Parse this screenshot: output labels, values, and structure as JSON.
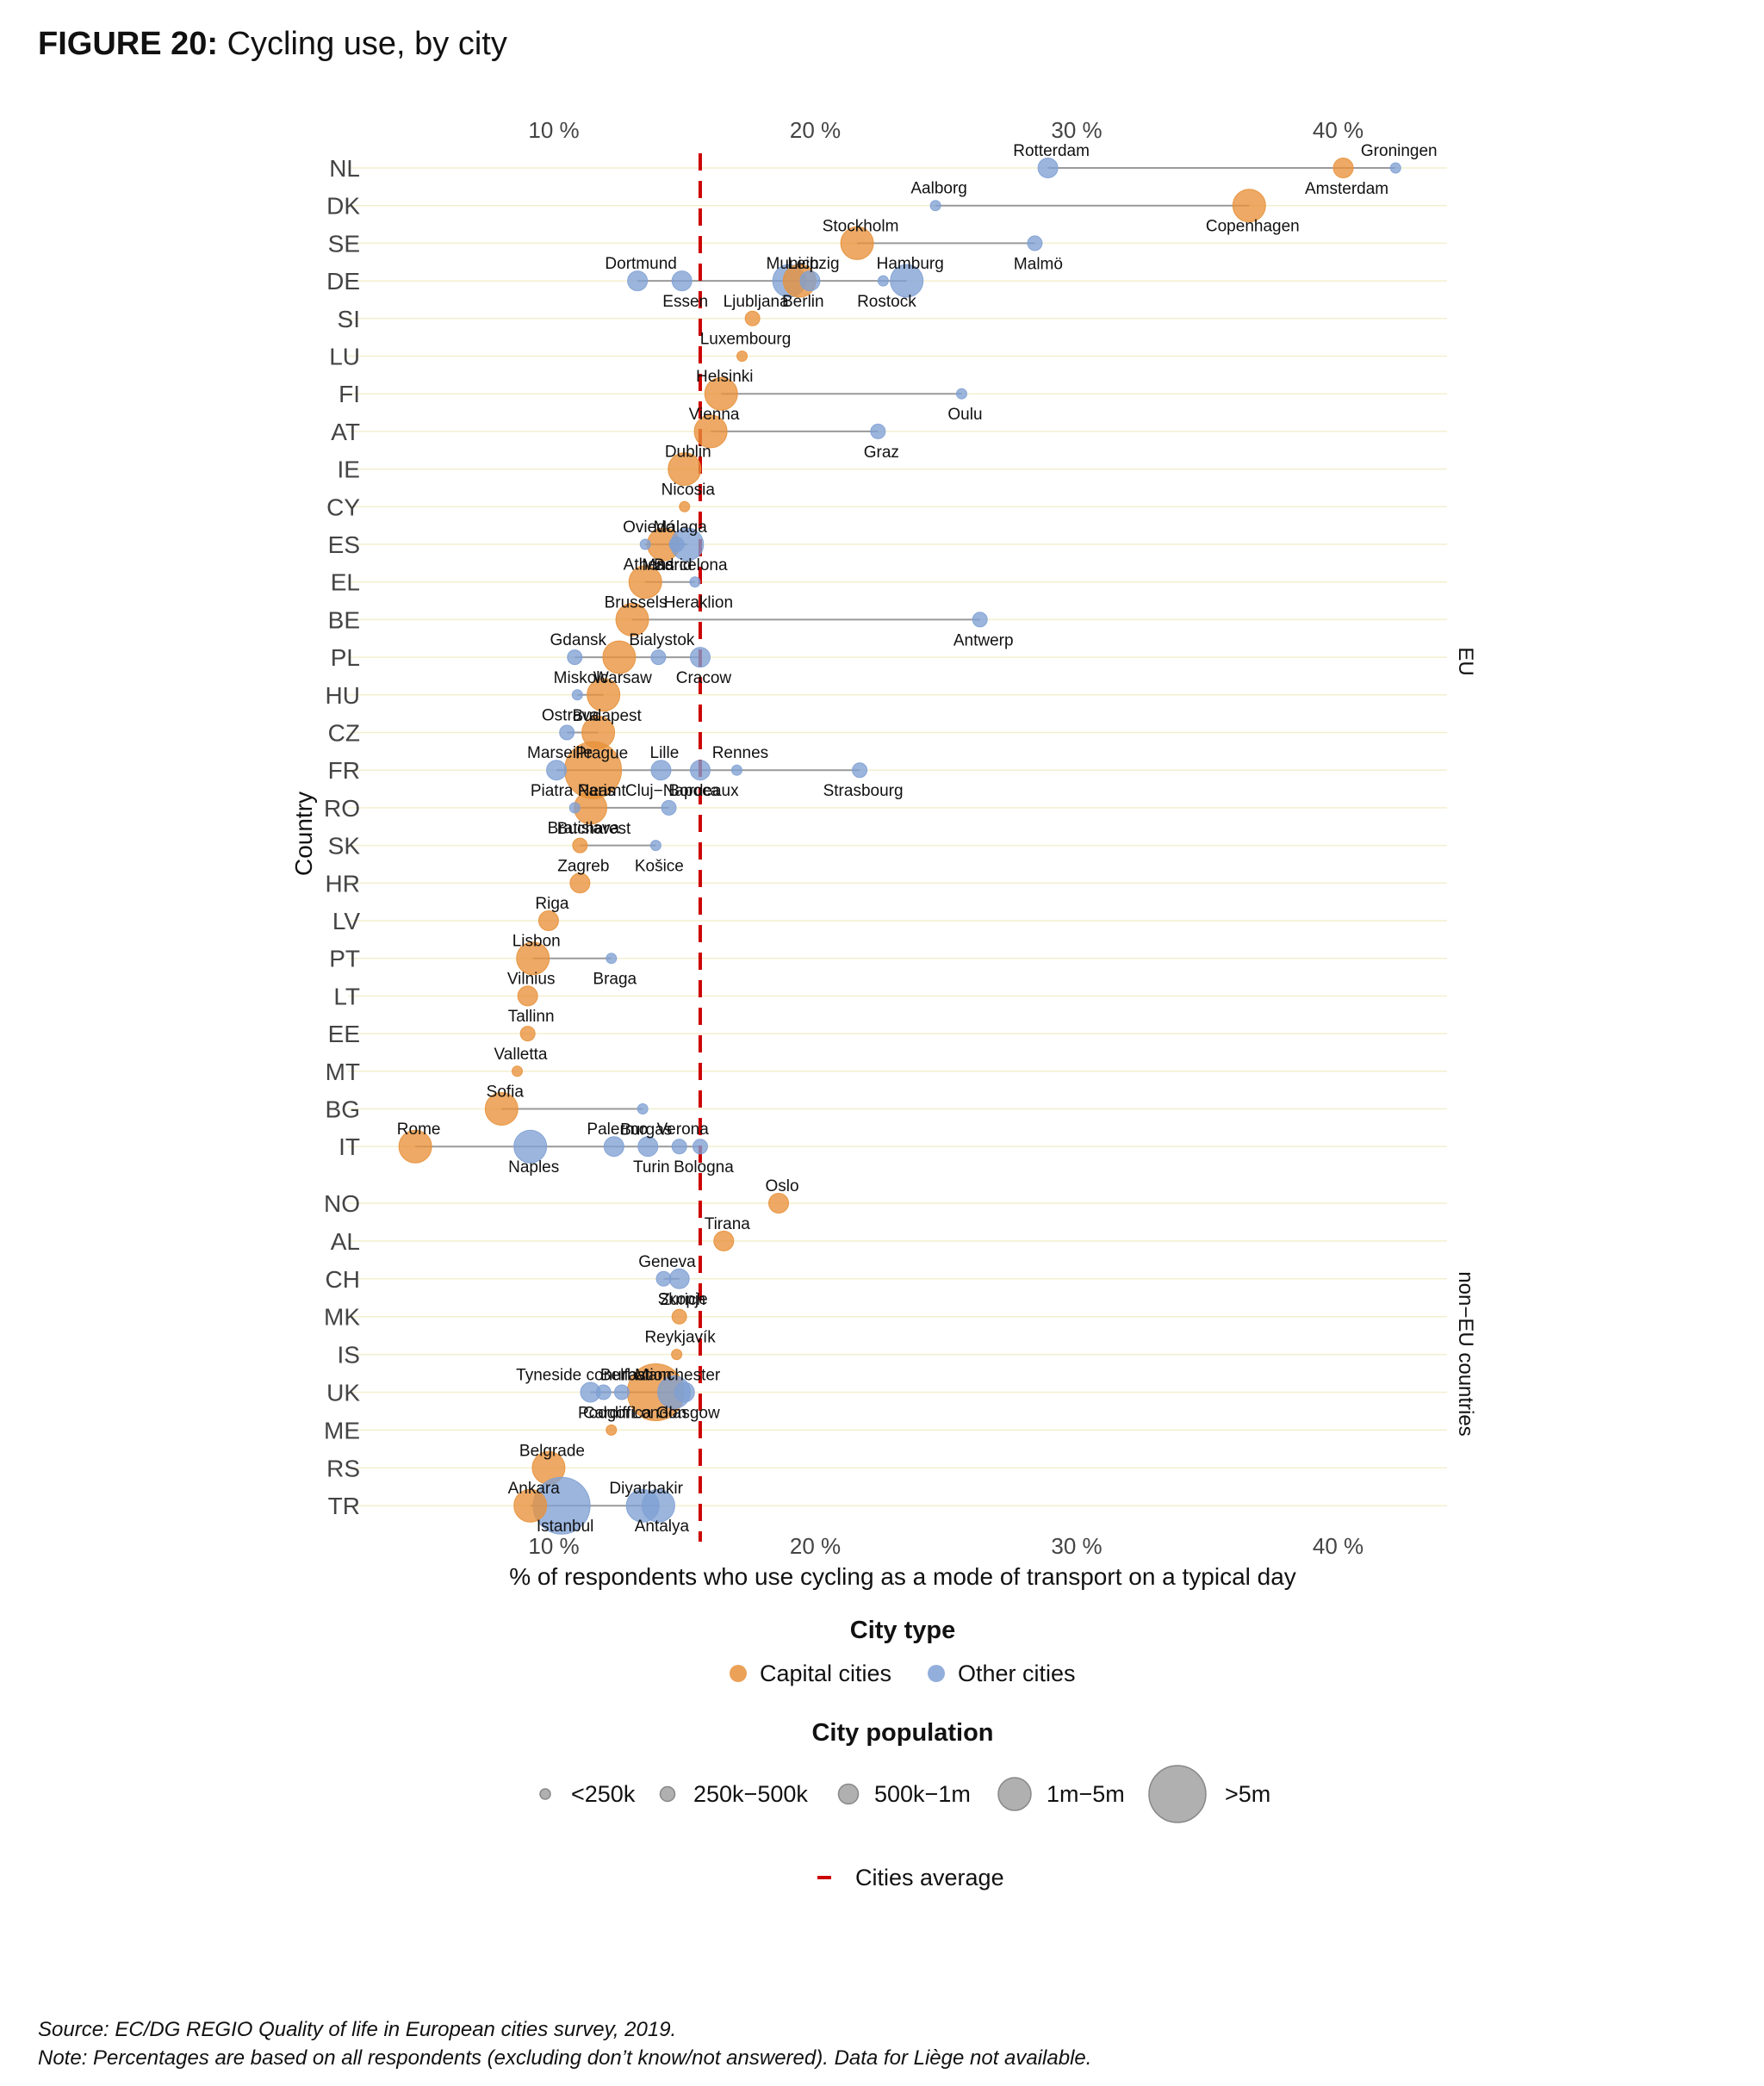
{
  "figure": {
    "label": "FIGURE 20:",
    "title": "Cycling use, by city"
  },
  "footnotes": {
    "source": "Source: EC/DG REGIO Quality of life in European cities survey, 2019.",
    "note": "Note: Percentages are based on all respondents (excluding don’t know/not answered). Data for Liège not available."
  },
  "chart_data": {
    "type": "scatter",
    "xlabel": "% of respondents who use cycling as a mode of transport on a typical day",
    "ylabel": "Country",
    "xlim": [
      3,
      44
    ],
    "xticks": [
      10,
      20,
      30,
      40
    ],
    "xtick_labels": [
      "10 %",
      "20 %",
      "30 %",
      "40 %"
    ],
    "average": 15.6,
    "average_label": "Cities average",
    "average_color": "#cc0000",
    "colors": {
      "capital": "#e8913a",
      "other": "#7fa0d4"
    },
    "groups": [
      {
        "label": "EU",
        "countries": [
          "NL",
          "DK",
          "SE",
          "DE",
          "SI",
          "LU",
          "FI",
          "AT",
          "IE",
          "CY",
          "ES",
          "EL",
          "BE",
          "PL",
          "HU",
          "CZ",
          "FR",
          "RO",
          "SK",
          "HR",
          "LV",
          "PT",
          "LT",
          "EE",
          "MT",
          "BG",
          "IT"
        ]
      },
      {
        "label": "non−EU countries",
        "countries": [
          "NO",
          "AL",
          "CH",
          "MK",
          "IS",
          "UK",
          "ME",
          "RS",
          "TR"
        ]
      }
    ],
    "legend_type": {
      "title": "City type",
      "items": [
        {
          "label": "Capital cities",
          "type": "capital"
        },
        {
          "label": "Other cities",
          "type": "other"
        }
      ]
    },
    "legend_size": {
      "title": "City population",
      "items": [
        {
          "label": "<250k",
          "size": 1
        },
        {
          "label": "250k−500k",
          "size": 2
        },
        {
          "label": "500k−1m",
          "size": 3
        },
        {
          "label": "1m−5m",
          "size": 4
        },
        {
          "label": ">5m",
          "size": 5
        }
      ]
    },
    "countries": [
      {
        "code": "NL",
        "cities": [
          {
            "name": "Rotterdam",
            "value": 28.9,
            "type": "other",
            "size": 3
          },
          {
            "name": "Amsterdam",
            "value": 40.2,
            "type": "capital",
            "size": 3
          },
          {
            "name": "Groningen",
            "value": 42.2,
            "type": "other",
            "size": 1
          }
        ]
      },
      {
        "code": "DK",
        "cities": [
          {
            "name": "Aalborg",
            "value": 24.6,
            "type": "other",
            "size": 1
          },
          {
            "name": "Copenhagen",
            "value": 36.6,
            "type": "capital",
            "size": 4
          }
        ]
      },
      {
        "code": "SE",
        "cities": [
          {
            "name": "Stockholm",
            "value": 21.6,
            "type": "capital",
            "size": 4
          },
          {
            "name": "Malmö",
            "value": 28.4,
            "type": "other",
            "size": 2
          }
        ]
      },
      {
        "code": "DE",
        "cities": [
          {
            "name": "Dortmund",
            "value": 13.2,
            "type": "other",
            "size": 3
          },
          {
            "name": "Essen",
            "value": 14.9,
            "type": "other",
            "size": 3
          },
          {
            "name": "Munich",
            "value": 19.0,
            "type": "other",
            "size": 4
          },
          {
            "name": "Berlin",
            "value": 19.4,
            "type": "capital",
            "size": 4
          },
          {
            "name": "Leipzig",
            "value": 19.8,
            "type": "other",
            "size": 3
          },
          {
            "name": "Rostock",
            "value": 22.6,
            "type": "other",
            "size": 1
          },
          {
            "name": "Hamburg",
            "value": 23.5,
            "type": "other",
            "size": 4
          }
        ]
      },
      {
        "code": "SI",
        "cities": [
          {
            "name": "Ljubljana",
            "value": 17.6,
            "type": "capital",
            "size": 2
          }
        ]
      },
      {
        "code": "LU",
        "cities": [
          {
            "name": "Luxembourg",
            "value": 17.2,
            "type": "capital",
            "size": 1
          }
        ]
      },
      {
        "code": "FI",
        "cities": [
          {
            "name": "Helsinki",
            "value": 16.4,
            "type": "capital",
            "size": 4
          },
          {
            "name": "Oulu",
            "value": 25.6,
            "type": "other",
            "size": 1
          }
        ]
      },
      {
        "code": "AT",
        "cities": [
          {
            "name": "Vienna",
            "value": 16.0,
            "type": "capital",
            "size": 4
          },
          {
            "name": "Graz",
            "value": 22.4,
            "type": "other",
            "size": 2
          }
        ]
      },
      {
        "code": "IE",
        "cities": [
          {
            "name": "Dublin",
            "value": 15.0,
            "type": "capital",
            "size": 4
          }
        ]
      },
      {
        "code": "CY",
        "cities": [
          {
            "name": "Nicosia",
            "value": 15.0,
            "type": "capital",
            "size": 1
          }
        ]
      },
      {
        "code": "ES",
        "cities": [
          {
            "name": "Oviedo",
            "value": 13.5,
            "type": "other",
            "size": 1
          },
          {
            "name": "Madrid",
            "value": 14.2,
            "type": "capital",
            "size": 4
          },
          {
            "name": "Málaga",
            "value": 14.7,
            "type": "other",
            "size": 2
          },
          {
            "name": "Barcelona",
            "value": 15.1,
            "type": "other",
            "size": 4
          }
        ]
      },
      {
        "code": "EL",
        "cities": [
          {
            "name": "Athens",
            "value": 13.5,
            "type": "capital",
            "size": 4
          },
          {
            "name": "Heraklion",
            "value": 15.4,
            "type": "other",
            "size": 1
          }
        ]
      },
      {
        "code": "BE",
        "cities": [
          {
            "name": "Brussels",
            "value": 13.0,
            "type": "capital",
            "size": 4
          },
          {
            "name": "Antwerp",
            "value": 26.3,
            "type": "other",
            "size": 2
          }
        ]
      },
      {
        "code": "PL",
        "cities": [
          {
            "name": "Gdansk",
            "value": 10.8,
            "type": "other",
            "size": 2
          },
          {
            "name": "Warsaw",
            "value": 12.5,
            "type": "capital",
            "size": 4
          },
          {
            "name": "Bialystok",
            "value": 14.0,
            "type": "other",
            "size": 2
          },
          {
            "name": "Cracow",
            "value": 15.6,
            "type": "other",
            "size": 3
          }
        ]
      },
      {
        "code": "HU",
        "cities": [
          {
            "name": "Miskolc",
            "value": 10.9,
            "type": "other",
            "size": 1
          },
          {
            "name": "Budapest",
            "value": 11.9,
            "type": "capital",
            "size": 4
          }
        ]
      },
      {
        "code": "CZ",
        "cities": [
          {
            "name": "Ostrava",
            "value": 10.5,
            "type": "other",
            "size": 2
          },
          {
            "name": "Prague",
            "value": 11.7,
            "type": "capital",
            "size": 4
          }
        ]
      },
      {
        "code": "FR",
        "cities": [
          {
            "name": "Marseille",
            "value": 10.1,
            "type": "other",
            "size": 3
          },
          {
            "name": "Paris",
            "value": 11.5,
            "type": "capital",
            "size": 5
          },
          {
            "name": "Lille",
            "value": 14.1,
            "type": "other",
            "size": 3
          },
          {
            "name": "Bordeaux",
            "value": 15.6,
            "type": "other",
            "size": 3
          },
          {
            "name": "Rennes",
            "value": 17.0,
            "type": "other",
            "size": 1
          },
          {
            "name": "Strasbourg",
            "value": 21.7,
            "type": "other",
            "size": 2
          }
        ]
      },
      {
        "code": "RO",
        "cities": [
          {
            "name": "Piatra Neamt",
            "value": 10.8,
            "type": "other",
            "size": 1
          },
          {
            "name": "Bucharest",
            "value": 11.4,
            "type": "capital",
            "size": 4
          },
          {
            "name": "Cluj−Napoca",
            "value": 14.4,
            "type": "other",
            "size": 2
          }
        ]
      },
      {
        "code": "SK",
        "cities": [
          {
            "name": "Bratislava",
            "value": 11.0,
            "type": "capital",
            "size": 2
          },
          {
            "name": "Košice",
            "value": 13.9,
            "type": "other",
            "size": 1
          }
        ]
      },
      {
        "code": "HR",
        "cities": [
          {
            "name": "Zagreb",
            "value": 11.0,
            "type": "capital",
            "size": 3
          }
        ]
      },
      {
        "code": "LV",
        "cities": [
          {
            "name": "Riga",
            "value": 9.8,
            "type": "capital",
            "size": 3
          }
        ]
      },
      {
        "code": "PT",
        "cities": [
          {
            "name": "Lisbon",
            "value": 9.2,
            "type": "capital",
            "size": 4
          },
          {
            "name": "Braga",
            "value": 12.2,
            "type": "other",
            "size": 1
          }
        ]
      },
      {
        "code": "LT",
        "cities": [
          {
            "name": "Vilnius",
            "value": 9.0,
            "type": "capital",
            "size": 3
          }
        ]
      },
      {
        "code": "EE",
        "cities": [
          {
            "name": "Tallinn",
            "value": 9.0,
            "type": "capital",
            "size": 2
          }
        ]
      },
      {
        "code": "MT",
        "cities": [
          {
            "name": "Valletta",
            "value": 8.6,
            "type": "capital",
            "size": 1
          }
        ]
      },
      {
        "code": "BG",
        "cities": [
          {
            "name": "Sofia",
            "value": 8.0,
            "type": "capital",
            "size": 4
          },
          {
            "name": "Burgas",
            "value": 13.4,
            "type": "other",
            "size": 1
          }
        ]
      },
      {
        "code": "IT",
        "cities": [
          {
            "name": "Rome",
            "value": 4.7,
            "type": "capital",
            "size": 4
          },
          {
            "name": "Naples",
            "value": 9.1,
            "type": "other",
            "size": 4
          },
          {
            "name": "Palermo",
            "value": 12.3,
            "type": "other",
            "size": 3
          },
          {
            "name": "Turin",
            "value": 13.6,
            "type": "other",
            "size": 3
          },
          {
            "name": "Verona",
            "value": 14.8,
            "type": "other",
            "size": 2
          },
          {
            "name": "Bologna",
            "value": 15.6,
            "type": "other",
            "size": 2
          }
        ]
      },
      {
        "code": "NO",
        "cities": [
          {
            "name": "Oslo",
            "value": 18.6,
            "type": "capital",
            "size": 3
          }
        ]
      },
      {
        "code": "AL",
        "cities": [
          {
            "name": "Tirana",
            "value": 16.5,
            "type": "capital",
            "size": 3
          }
        ]
      },
      {
        "code": "CH",
        "cities": [
          {
            "name": "Geneva",
            "value": 14.2,
            "type": "other",
            "size": 2
          },
          {
            "name": "Zurich",
            "value": 14.8,
            "type": "other",
            "size": 3
          }
        ]
      },
      {
        "code": "MK",
        "cities": [
          {
            "name": "Skopje",
            "value": 14.8,
            "type": "capital",
            "size": 2
          }
        ]
      },
      {
        "code": "IS",
        "cities": [
          {
            "name": "Reykjavík",
            "value": 14.7,
            "type": "capital",
            "size": 1
          }
        ]
      },
      {
        "code": "UK",
        "cities": [
          {
            "name": "Tyneside conurbation",
            "value": 11.4,
            "type": "other",
            "size": 3
          },
          {
            "name": "Cardiff",
            "value": 11.9,
            "type": "other",
            "size": 2
          },
          {
            "name": "Belfast",
            "value": 12.6,
            "type": "other",
            "size": 2
          },
          {
            "name": "London",
            "value": 13.9,
            "type": "capital",
            "size": 5
          },
          {
            "name": "Manchester",
            "value": 14.6,
            "type": "other",
            "size": 4
          },
          {
            "name": "Glasgow",
            "value": 15.0,
            "type": "other",
            "size": 3
          }
        ]
      },
      {
        "code": "ME",
        "cities": [
          {
            "name": "Podgorica",
            "value": 12.2,
            "type": "capital",
            "size": 1
          }
        ]
      },
      {
        "code": "RS",
        "cities": [
          {
            "name": "Belgrade",
            "value": 9.8,
            "type": "capital",
            "size": 4
          }
        ]
      },
      {
        "code": "TR",
        "cities": [
          {
            "name": "Ankara",
            "value": 9.1,
            "type": "capital",
            "size": 4
          },
          {
            "name": "Istanbul",
            "value": 10.3,
            "type": "other",
            "size": 5
          },
          {
            "name": "Diyarbakir",
            "value": 13.4,
            "type": "other",
            "size": 4
          },
          {
            "name": "Antalya",
            "value": 14.0,
            "type": "other",
            "size": 4
          }
        ]
      }
    ]
  }
}
